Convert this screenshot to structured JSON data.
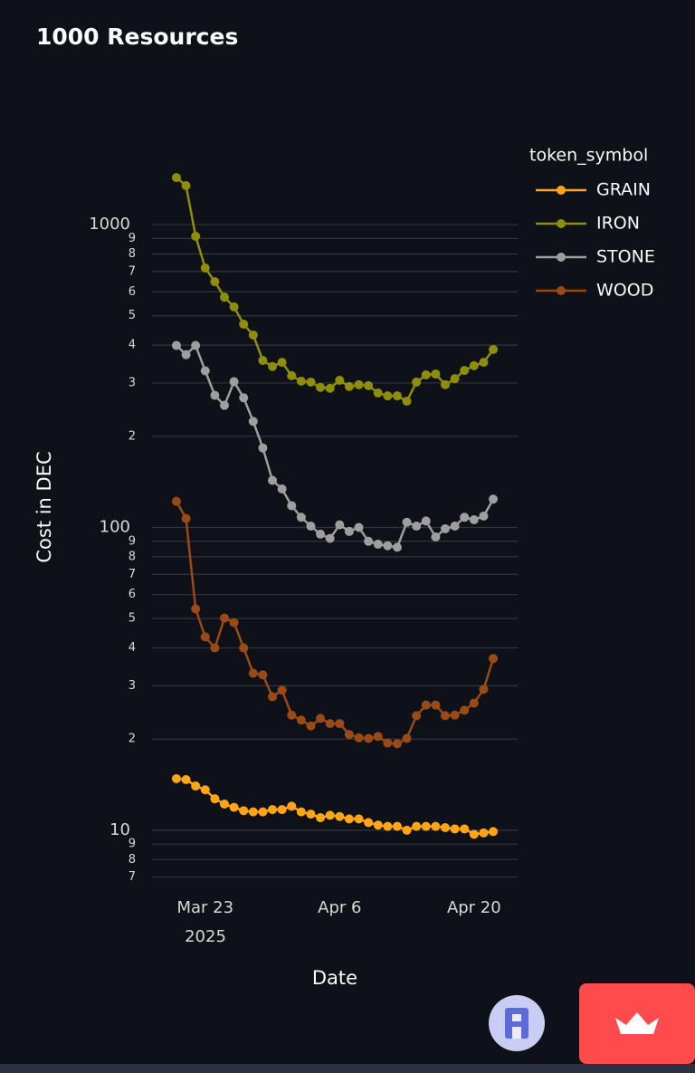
{
  "chart_data": {
    "type": "line",
    "title": "1000 Resources",
    "legend_title": "token_symbol",
    "x_label": "Date",
    "y_label": "Cost in DEC",
    "log_y": true,
    "grid": true,
    "legend_position": "right",
    "x": [
      "2025-03-20",
      "2025-03-21",
      "2025-03-22",
      "2025-03-23",
      "2025-03-24",
      "2025-03-25",
      "2025-03-26",
      "2025-03-27",
      "2025-03-28",
      "2025-03-29",
      "2025-03-30",
      "2025-03-31",
      "2025-04-01",
      "2025-04-02",
      "2025-04-03",
      "2025-04-04",
      "2025-04-05",
      "2025-04-06",
      "2025-04-07",
      "2025-04-08",
      "2025-04-09",
      "2025-04-10",
      "2025-04-11",
      "2025-04-12",
      "2025-04-13",
      "2025-04-14",
      "2025-04-15",
      "2025-04-16",
      "2025-04-17",
      "2025-04-18",
      "2025-04-19",
      "2025-04-20",
      "2025-04-21",
      "2025-04-22"
    ],
    "xlim": [
      "2025-03-17T11:00:00Z",
      "2025-04-24T13:00:00Z"
    ],
    "xticks": [
      {
        "value": "2025-03-23",
        "label": "Mar 23"
      },
      {
        "value": "2025-04-06",
        "label": "Apr 6"
      },
      {
        "value": "2025-04-20",
        "label": "Apr 20"
      }
    ],
    "x_year_label": "2025",
    "ylim": [
      6.3,
      1700
    ],
    "yticks": [
      7,
      8,
      9,
      10,
      {
        "value": 20,
        "label": "2"
      },
      {
        "value": 30,
        "label": "3"
      },
      {
        "value": 40,
        "label": "4"
      },
      {
        "value": 50,
        "label": "5"
      },
      {
        "value": 60,
        "label": "6"
      },
      {
        "value": 70,
        "label": "7"
      },
      {
        "value": 80,
        "label": "8"
      },
      {
        "value": 90,
        "label": "9"
      },
      100,
      {
        "value": 200,
        "label": "2"
      },
      {
        "value": 300,
        "label": "3"
      },
      {
        "value": 400,
        "label": "4"
      },
      {
        "value": 500,
        "label": "5"
      },
      {
        "value": 600,
        "label": "6"
      },
      {
        "value": 700,
        "label": "7"
      },
      {
        "value": 800,
        "label": "8"
      },
      {
        "value": 900,
        "label": "9"
      },
      1000
    ],
    "series": [
      {
        "name": "GRAIN",
        "color": "#ffa516",
        "values": [
          14.8,
          14.7,
          14.0,
          13.6,
          12.7,
          12.2,
          11.9,
          11.6,
          11.5,
          11.5,
          11.7,
          11.7,
          12.0,
          11.5,
          11.3,
          11.0,
          11.2,
          11.1,
          10.9,
          10.9,
          10.6,
          10.4,
          10.3,
          10.3,
          10.0,
          10.3,
          10.3,
          10.3,
          10.2,
          10.1,
          10.1,
          9.7,
          9.8,
          9.9
        ]
      },
      {
        "name": "IRON",
        "color": "#8e8e0c",
        "values": [
          1430,
          1345,
          915,
          719,
          648,
          576,
          535,
          469,
          432,
          356,
          340,
          351,
          317,
          304,
          302,
          290,
          288,
          306,
          292,
          296,
          294,
          278,
          272,
          272,
          261,
          302,
          319,
          321,
          296,
          310,
          330,
          342,
          351,
          387
        ]
      },
      {
        "name": "STONE",
        "color": "#9e9e9e",
        "values": [
          399,
          372,
          399,
          329,
          273,
          253,
          303,
          268,
          224,
          183,
          143,
          134,
          118,
          108,
          101,
          95,
          92,
          102,
          97,
          100,
          90,
          88,
          87,
          86,
          104,
          101,
          105,
          93,
          99,
          101,
          108,
          106,
          109,
          124
        ]
      },
      {
        "name": "WOOD",
        "color": "#9a4a17",
        "values": [
          122,
          107,
          53.8,
          43.5,
          40.0,
          50.2,
          48.5,
          40.0,
          33.0,
          32.6,
          27.6,
          29.0,
          24.0,
          23.1,
          22.1,
          23.4,
          22.5,
          22.5,
          20.7,
          20.2,
          20.1,
          20.4,
          19.4,
          19.3,
          20.1,
          23.9,
          25.9,
          25.9,
          23.9,
          24.0,
          24.9,
          26.3,
          29.2,
          36.9
        ]
      }
    ]
  }
}
